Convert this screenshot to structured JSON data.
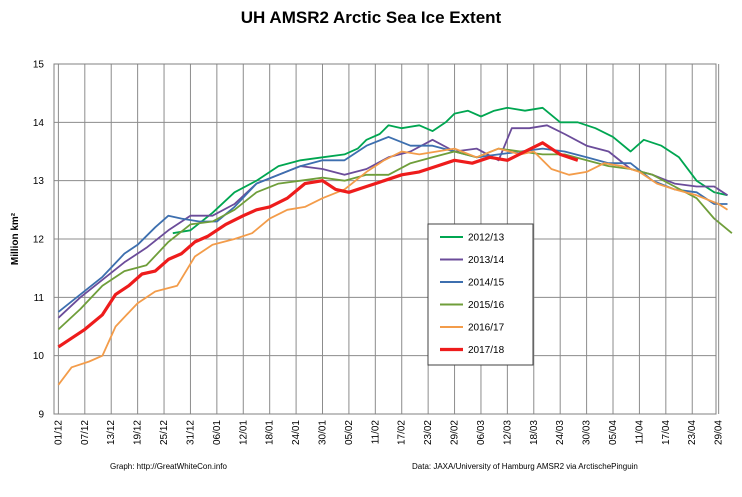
{
  "chart_data": {
    "type": "line",
    "title": "UH AMSR2 Arctic Sea Ice Extent",
    "ylabel": "Million km²",
    "xlabel": "",
    "ylim": [
      9,
      15
    ],
    "yticks": [
      9,
      10,
      11,
      12,
      13,
      14,
      15
    ],
    "x_tick_labels": [
      "01/12",
      "07/12",
      "13/12",
      "19/12",
      "25/12",
      "31/12",
      "06/01",
      "12/01",
      "18/01",
      "24/01",
      "30/01",
      "05/02",
      "11/02",
      "17/02",
      "23/02",
      "29/02",
      "06/03",
      "12/03",
      "18/03",
      "24/03",
      "30/03",
      "05/04",
      "11/04",
      "17/04",
      "23/04",
      "29/04"
    ],
    "grid": true,
    "legend_position": "center-right",
    "series": [
      {
        "name": "2012/13",
        "color": "#00a651",
        "start_day": 26,
        "points": [
          [
            26,
            12.1
          ],
          [
            30,
            12.15
          ],
          [
            35,
            12.45
          ],
          [
            40,
            12.8
          ],
          [
            45,
            13.0
          ],
          [
            50,
            13.25
          ],
          [
            55,
            13.35
          ],
          [
            60,
            13.4
          ],
          [
            65,
            13.45
          ],
          [
            68,
            13.55
          ],
          [
            70,
            13.7
          ],
          [
            73,
            13.8
          ],
          [
            75,
            13.95
          ],
          [
            78,
            13.9
          ],
          [
            82,
            13.95
          ],
          [
            85,
            13.85
          ],
          [
            88,
            14.0
          ],
          [
            90,
            14.15
          ],
          [
            93,
            14.2
          ],
          [
            96,
            14.1
          ],
          [
            99,
            14.2
          ],
          [
            102,
            14.25
          ],
          [
            106,
            14.2
          ],
          [
            110,
            14.25
          ],
          [
            114,
            14.0
          ],
          [
            118,
            14.0
          ],
          [
            122,
            13.9
          ],
          [
            126,
            13.75
          ],
          [
            130,
            13.5
          ],
          [
            133,
            13.7
          ],
          [
            137,
            13.6
          ],
          [
            141,
            13.4
          ],
          [
            145,
            13.0
          ],
          [
            149,
            12.8
          ],
          [
            152,
            12.75
          ]
        ]
      },
      {
        "name": "2013/14",
        "color": "#6b4c9a",
        "start_day": 0,
        "points": [
          [
            0,
            10.65
          ],
          [
            5,
            11.0
          ],
          [
            10,
            11.3
          ],
          [
            15,
            11.6
          ],
          [
            20,
            11.85
          ],
          [
            25,
            12.15
          ],
          [
            30,
            12.4
          ],
          [
            35,
            12.4
          ],
          [
            40,
            12.6
          ],
          [
            45,
            12.95
          ],
          [
            50,
            13.1
          ],
          [
            55,
            13.25
          ],
          [
            60,
            13.2
          ],
          [
            65,
            13.1
          ],
          [
            70,
            13.2
          ],
          [
            75,
            13.4
          ],
          [
            80,
            13.5
          ],
          [
            85,
            13.7
          ],
          [
            90,
            13.5
          ],
          [
            95,
            13.55
          ],
          [
            100,
            13.35
          ],
          [
            103,
            13.9
          ],
          [
            107,
            13.9
          ],
          [
            111,
            13.95
          ],
          [
            115,
            13.8
          ],
          [
            120,
            13.6
          ],
          [
            125,
            13.5
          ],
          [
            130,
            13.2
          ],
          [
            135,
            13.1
          ],
          [
            140,
            12.95
          ],
          [
            145,
            12.9
          ],
          [
            149,
            12.9
          ],
          [
            152,
            12.75
          ]
        ]
      },
      {
        "name": "2014/15",
        "color": "#3d6faf",
        "start_day": 0,
        "points": [
          [
            0,
            10.75
          ],
          [
            5,
            11.05
          ],
          [
            10,
            11.35
          ],
          [
            15,
            11.75
          ],
          [
            18,
            11.9
          ],
          [
            22,
            12.2
          ],
          [
            25,
            12.4
          ],
          [
            28,
            12.35
          ],
          [
            32,
            12.3
          ],
          [
            36,
            12.3
          ],
          [
            40,
            12.55
          ],
          [
            45,
            12.95
          ],
          [
            50,
            13.1
          ],
          [
            55,
            13.25
          ],
          [
            60,
            13.35
          ],
          [
            65,
            13.35
          ],
          [
            70,
            13.6
          ],
          [
            75,
            13.75
          ],
          [
            80,
            13.6
          ],
          [
            85,
            13.6
          ],
          [
            90,
            13.5
          ],
          [
            95,
            13.4
          ],
          [
            100,
            13.45
          ],
          [
            105,
            13.5
          ],
          [
            110,
            13.55
          ],
          [
            115,
            13.5
          ],
          [
            120,
            13.4
          ],
          [
            125,
            13.3
          ],
          [
            130,
            13.3
          ],
          [
            135,
            13.0
          ],
          [
            140,
            12.85
          ],
          [
            145,
            12.8
          ],
          [
            149,
            12.6
          ],
          [
            152,
            12.6
          ]
        ]
      },
      {
        "name": "2015/16",
        "color": "#6f9e3a",
        "start_day": 0,
        "points": [
          [
            0,
            10.45
          ],
          [
            5,
            10.8
          ],
          [
            10,
            11.2
          ],
          [
            15,
            11.45
          ],
          [
            20,
            11.55
          ],
          [
            25,
            11.95
          ],
          [
            30,
            12.25
          ],
          [
            35,
            12.3
          ],
          [
            40,
            12.5
          ],
          [
            45,
            12.8
          ],
          [
            50,
            12.95
          ],
          [
            55,
            13.0
          ],
          [
            60,
            13.05
          ],
          [
            65,
            13.0
          ],
          [
            70,
            13.1
          ],
          [
            75,
            13.1
          ],
          [
            80,
            13.3
          ],
          [
            85,
            13.4
          ],
          [
            90,
            13.5
          ],
          [
            95,
            13.4
          ],
          [
            100,
            13.55
          ],
          [
            105,
            13.5
          ],
          [
            110,
            13.45
          ],
          [
            115,
            13.45
          ],
          [
            120,
            13.35
          ],
          [
            125,
            13.25
          ],
          [
            130,
            13.2
          ],
          [
            135,
            13.1
          ],
          [
            140,
            12.9
          ],
          [
            145,
            12.7
          ],
          [
            149,
            12.35
          ],
          [
            153,
            12.1
          ]
        ]
      },
      {
        "name": "2016/17",
        "color": "#f39c4a",
        "start_day": 0,
        "points": [
          [
            0,
            9.5
          ],
          [
            3,
            9.8
          ],
          [
            7,
            9.9
          ],
          [
            10,
            10.0
          ],
          [
            13,
            10.5
          ],
          [
            18,
            10.9
          ],
          [
            22,
            11.1
          ],
          [
            27,
            11.2
          ],
          [
            31,
            11.7
          ],
          [
            35,
            11.9
          ],
          [
            40,
            12.0
          ],
          [
            44,
            12.1
          ],
          [
            48,
            12.35
          ],
          [
            52,
            12.5
          ],
          [
            56,
            12.55
          ],
          [
            60,
            12.7
          ],
          [
            65,
            12.85
          ],
          [
            70,
            13.15
          ],
          [
            74,
            13.35
          ],
          [
            78,
            13.5
          ],
          [
            82,
            13.45
          ],
          [
            86,
            13.5
          ],
          [
            90,
            13.55
          ],
          [
            95,
            13.4
          ],
          [
            100,
            13.55
          ],
          [
            105,
            13.45
          ],
          [
            108,
            13.5
          ],
          [
            112,
            13.2
          ],
          [
            116,
            13.1
          ],
          [
            120,
            13.15
          ],
          [
            124,
            13.3
          ],
          [
            128,
            13.25
          ],
          [
            132,
            13.15
          ],
          [
            136,
            12.95
          ],
          [
            140,
            12.85
          ],
          [
            145,
            12.75
          ],
          [
            150,
            12.6
          ],
          [
            152,
            12.5
          ]
        ]
      },
      {
        "name": "2017/18",
        "color": "#ee1c1c",
        "start_day": 0,
        "points": [
          [
            0,
            10.15
          ],
          [
            3,
            10.3
          ],
          [
            6,
            10.45
          ],
          [
            10,
            10.7
          ],
          [
            13,
            11.05
          ],
          [
            16,
            11.2
          ],
          [
            19,
            11.4
          ],
          [
            22,
            11.45
          ],
          [
            25,
            11.65
          ],
          [
            28,
            11.75
          ],
          [
            31,
            11.95
          ],
          [
            34,
            12.05
          ],
          [
            38,
            12.25
          ],
          [
            42,
            12.4
          ],
          [
            45,
            12.5
          ],
          [
            48,
            12.55
          ],
          [
            52,
            12.7
          ],
          [
            56,
            12.95
          ],
          [
            60,
            13.0
          ],
          [
            63,
            12.85
          ],
          [
            66,
            12.8
          ],
          [
            70,
            12.9
          ],
          [
            74,
            13.0
          ],
          [
            78,
            13.1
          ],
          [
            82,
            13.15
          ],
          [
            86,
            13.25
          ],
          [
            90,
            13.35
          ],
          [
            94,
            13.3
          ],
          [
            98,
            13.4
          ],
          [
            102,
            13.35
          ],
          [
            106,
            13.5
          ],
          [
            110,
            13.65
          ],
          [
            114,
            13.45
          ],
          [
            118,
            13.35
          ]
        ]
      }
    ],
    "credits": {
      "left": "Graph: http://GreatWhiteCon.info",
      "right": "Data: JAXA/University of Hamburg AMSR2 via ArctischePinguin"
    }
  }
}
